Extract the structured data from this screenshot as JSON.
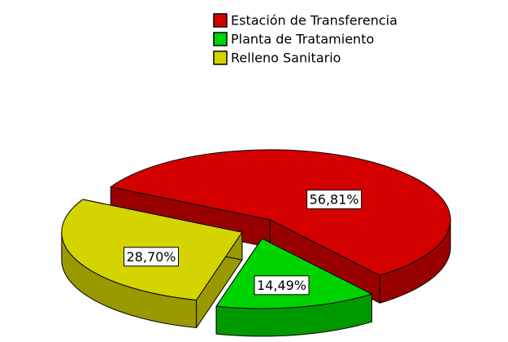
{
  "chart_data": {
    "type": "pie3d",
    "categories": [
      "Estación de Transferencia",
      "Planta de Tratamiento",
      "Relleno Sanitario"
    ],
    "values": [
      56.81,
      14.49,
      28.7
    ],
    "value_labels": [
      "56,81%",
      "14,49%",
      "28,70%"
    ],
    "colors": [
      "#d40000",
      "#00d400",
      "#d4d400"
    ],
    "legend": "top-right"
  }
}
